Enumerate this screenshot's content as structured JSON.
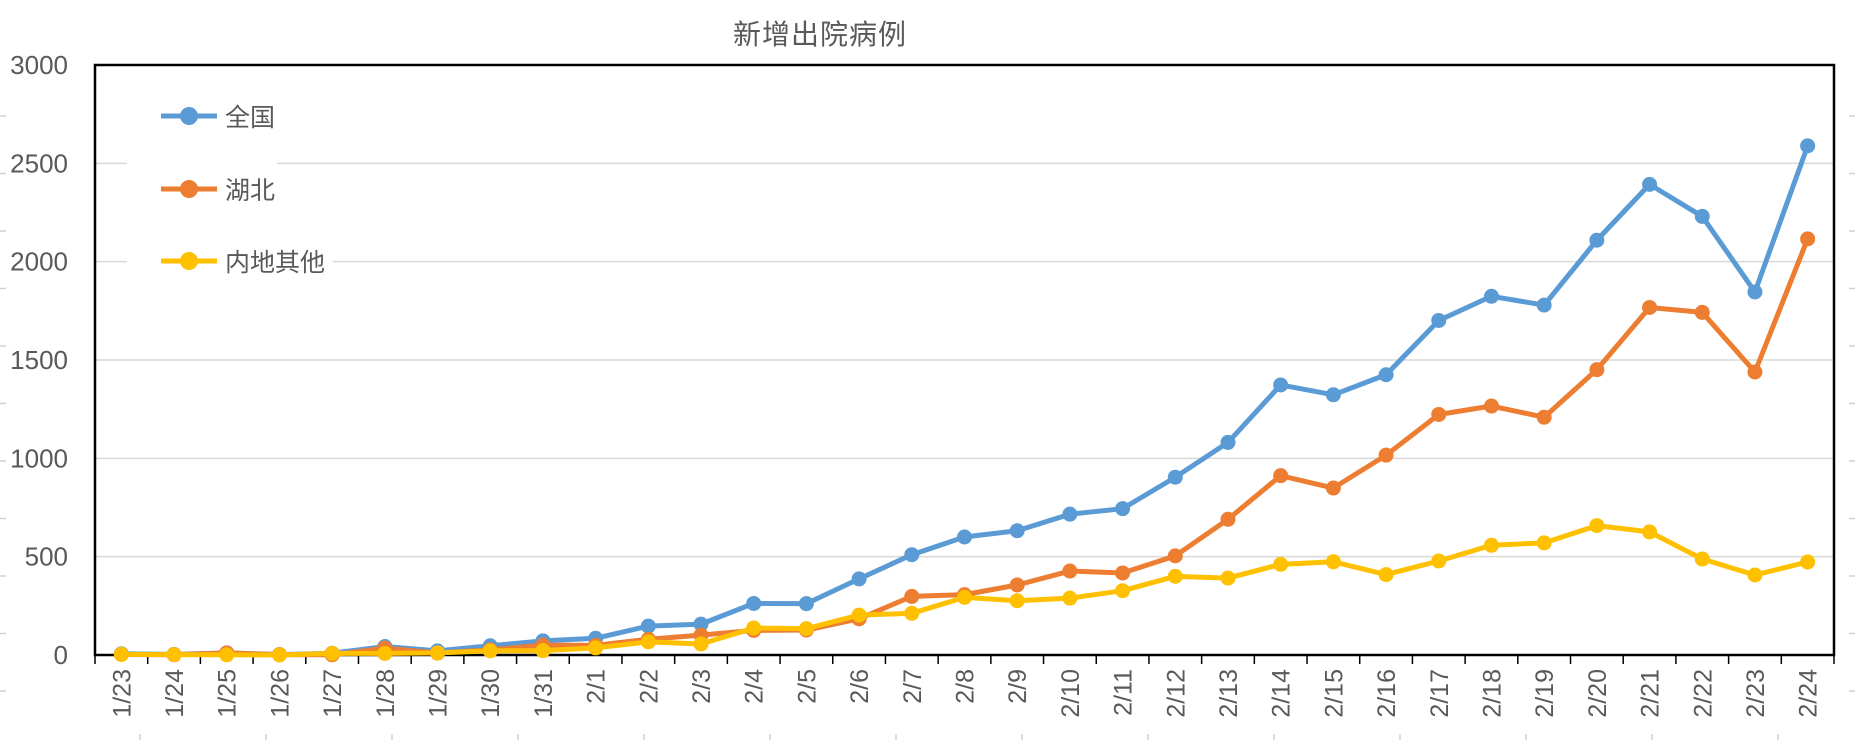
{
  "title": "新增出院病例",
  "chart_data": {
    "type": "line",
    "title": "新增出院病例",
    "categories": [
      "1/23",
      "1/24",
      "1/25",
      "1/26",
      "1/27",
      "1/28",
      "1/29",
      "1/30",
      "1/31",
      "2/1",
      "2/2",
      "2/3",
      "2/4",
      "2/5",
      "2/6",
      "2/7",
      "2/8",
      "2/9",
      "2/10",
      "2/11",
      "2/12",
      "2/13",
      "2/14",
      "2/15",
      "2/16",
      "2/17",
      "2/18",
      "2/19",
      "2/20",
      "2/21",
      "2/22",
      "2/23",
      "2/24"
    ],
    "series": [
      {
        "name": "全国",
        "color": "#5B9BD5",
        "values": [
          6,
          3,
          11,
          2,
          9,
          43,
          21,
          47,
          72,
          85,
          147,
          157,
          262,
          261,
          387,
          510,
          600,
          632,
          716,
          744,
          904,
          1081,
          1373,
          1323,
          1425,
          1701,
          1824,
          1779,
          2109,
          2393,
          2230,
          1846,
          2589
        ]
      },
      {
        "name": "湖北",
        "color": "#ED7D31",
        "values": [
          3,
          1,
          10,
          2,
          1,
          35,
          10,
          26,
          50,
          49,
          80,
          101,
          125,
          127,
          184,
          298,
          307,
          356,
          427,
          417,
          504,
          690,
          912,
          849,
          1016,
          1223,
          1266,
          1209,
          1451,
          1767,
          1742,
          1439,
          2116
        ]
      },
      {
        "name": "内地其他",
        "color": "#FFC000",
        "values": [
          3,
          2,
          1,
          0,
          8,
          8,
          11,
          21,
          22,
          36,
          67,
          56,
          137,
          134,
          203,
          212,
          293,
          276,
          289,
          327,
          400,
          391,
          461,
          474,
          409,
          478,
          558,
          570,
          658,
          626,
          488,
          407,
          473
        ]
      }
    ],
    "ylim": [
      0,
      3000
    ],
    "ytick_step": 500,
    "yticks": [
      "3000",
      "2500",
      "2000",
      "1500",
      "1000",
      "500",
      "0"
    ],
    "grid": "horizontal-major",
    "legend_position": "inside-top-left",
    "xlabel": "",
    "ylabel": "",
    "colors": {
      "axis": "#000000",
      "gridline": "#D9D9D9",
      "labels": "#595959",
      "edge_stub": "#D0D0D0",
      "background": "#FFFFFF"
    }
  }
}
